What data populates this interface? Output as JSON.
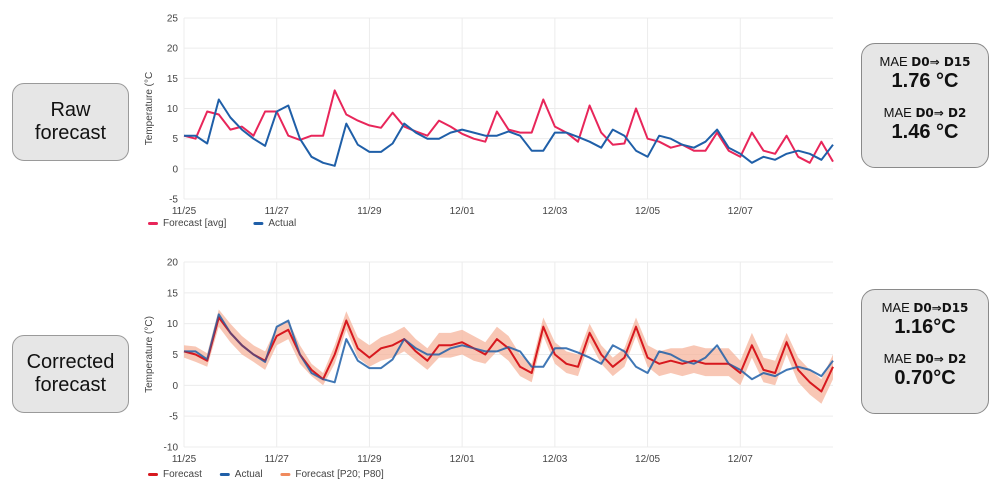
{
  "labels": {
    "raw": [
      "Raw",
      "forecast"
    ],
    "corrected": [
      "Corrected",
      "forecast"
    ]
  },
  "mae": {
    "raw": [
      {
        "prefix": "MAE",
        "range": "D0⇒ D15",
        "value": "1.76 °C"
      },
      {
        "prefix": "MAE",
        "range": "D0⇒ D2",
        "value": "1.46 °C"
      }
    ],
    "corrected": [
      {
        "prefix": "MAE",
        "range": "D0⇒D15",
        "value": "1.16°C"
      },
      {
        "prefix": "MAE",
        "range": "D0⇒ D2",
        "value": "0.70°C"
      }
    ]
  },
  "colors": {
    "forecast_raw": "#e8265a",
    "forecast_corrected": "#d7191f",
    "actual": "#1f5fa8",
    "band": "#f6b49c"
  },
  "chart_data": [
    {
      "type": "line",
      "ylabel": "Temperature (°C",
      "ylim": [
        -5,
        25
      ],
      "yticks": [
        "25",
        "20",
        "15",
        "10",
        "5",
        "0",
        "-5"
      ],
      "xticks": [
        "11/25",
        "11/27",
        "11/29",
        "12/01",
        "12/03",
        "12/05",
        "12/07"
      ],
      "x_step_days": 0.25,
      "grid": true,
      "legend": "bottom-left",
      "series": [
        {
          "name": "Forecast [avg]",
          "values": [
            5.5,
            5,
            9.5,
            9,
            6.5,
            7,
            5.5,
            9.5,
            9.5,
            5.5,
            4.8,
            5.5,
            5.5,
            13,
            9,
            8,
            7.2,
            6.8,
            9.3,
            7,
            6.2,
            5.5,
            8,
            7,
            5.8,
            5,
            4.5,
            9.5,
            6.5,
            6,
            6,
            11.5,
            7,
            6,
            4.5,
            10.5,
            6,
            4,
            4.2,
            10,
            5,
            4.5,
            3.5,
            4,
            3,
            3,
            6,
            3,
            2,
            6,
            3,
            2.5,
            5.5,
            2,
            1,
            4.5,
            1.2
          ]
        },
        {
          "name": "Actual",
          "values": [
            5.5,
            5.5,
            4.2,
            11.5,
            8.5,
            6.5,
            5,
            3.8,
            9.5,
            10.5,
            5,
            2,
            1,
            0.5,
            7.5,
            4,
            2.8,
            2.8,
            4.2,
            7.5,
            6,
            5,
            5,
            6,
            6.5,
            6,
            5.5,
            5.5,
            6.2,
            5.5,
            3,
            3,
            6,
            6,
            5.3,
            4.5,
            3.5,
            6.5,
            5.5,
            3,
            2,
            5.5,
            5,
            4,
            3.5,
            4.5,
            6.5,
            3.5,
            2.5,
            1,
            2,
            1.5,
            2.5,
            3,
            2.5,
            1.5,
            4
          ]
        }
      ]
    },
    {
      "type": "line",
      "ylabel": "Temperature (°C)",
      "ylim": [
        -10,
        20
      ],
      "yticks": [
        "20",
        "15",
        "10",
        "5",
        "0",
        "-5",
        "-10"
      ],
      "xticks": [
        "11/25",
        "11/27",
        "11/29",
        "12/01",
        "12/03",
        "12/05",
        "12/07"
      ],
      "x_step_days": 0.25,
      "grid": true,
      "legend": "bottom-left",
      "series": [
        {
          "name": "Forecast",
          "values": [
            5.5,
            5,
            4,
            11,
            8.5,
            6.5,
            5,
            4,
            8,
            9,
            5,
            2.5,
            1,
            5,
            10.5,
            6,
            4.5,
            6,
            6.5,
            7.5,
            5.5,
            4,
            6.5,
            6.5,
            7,
            6,
            5,
            7.5,
            6,
            3,
            2,
            9.5,
            5,
            3.5,
            3,
            8.5,
            5,
            3,
            4.5,
            9.5,
            4.5,
            3.5,
            4,
            3.5,
            4,
            3.5,
            3.5,
            3.5,
            2,
            6.5,
            2.5,
            2,
            7,
            2.5,
            0.5,
            -1,
            3
          ]
        },
        {
          "name": "Actual",
          "values": [
            5.5,
            5.5,
            4.2,
            11.5,
            8.5,
            6.5,
            5,
            3.8,
            9.5,
            10.5,
            5,
            2,
            1,
            0.5,
            7.5,
            4,
            2.8,
            2.8,
            4.2,
            7.5,
            6,
            5,
            5,
            6,
            6.5,
            6,
            5.5,
            5.5,
            6.2,
            5.5,
            3,
            3,
            6,
            6,
            5.3,
            4.5,
            3.5,
            6.5,
            5.5,
            3,
            2,
            5.5,
            5,
            4,
            3.5,
            4.5,
            6.5,
            3.5,
            2.5,
            1,
            2,
            1.5,
            2.5,
            3,
            2.5,
            1.5,
            4
          ]
        },
        {
          "name": "Forecast [P20; P80]",
          "p20": [
            4.5,
            3.8,
            3,
            9.5,
            7,
            5,
            3.8,
            2.5,
            6.5,
            7.5,
            3.5,
            1.5,
            0,
            3.5,
            9,
            4.5,
            3,
            4,
            4.5,
            5.5,
            4,
            2.5,
            4.5,
            4.5,
            5,
            4,
            3.5,
            5.5,
            4,
            1.5,
            0.5,
            8,
            3.5,
            2,
            1.5,
            7,
            3.5,
            1.5,
            3,
            8,
            3,
            1.5,
            2,
            1.5,
            2,
            1.5,
            1.5,
            1.5,
            0,
            4.5,
            0.5,
            0,
            5,
            0.5,
            -1.5,
            -3,
            1
          ],
          "p80": [
            6.5,
            6.3,
            5.2,
            12.3,
            10,
            8,
            6.5,
            5.5,
            9.5,
            10.5,
            6.5,
            3.5,
            2,
            6.5,
            12,
            7.8,
            6.5,
            7.8,
            8.5,
            9.5,
            7.5,
            6,
            8.5,
            8.5,
            9,
            8,
            7,
            9.5,
            8,
            5,
            3.5,
            11,
            7,
            5.5,
            5,
            10,
            6.5,
            4.5,
            6,
            11,
            6.5,
            5.5,
            6,
            6,
            6.5,
            6,
            6,
            6,
            4,
            8.5,
            4.5,
            4,
            8.5,
            4.5,
            2.5,
            1,
            5
          ]
        }
      ]
    }
  ]
}
